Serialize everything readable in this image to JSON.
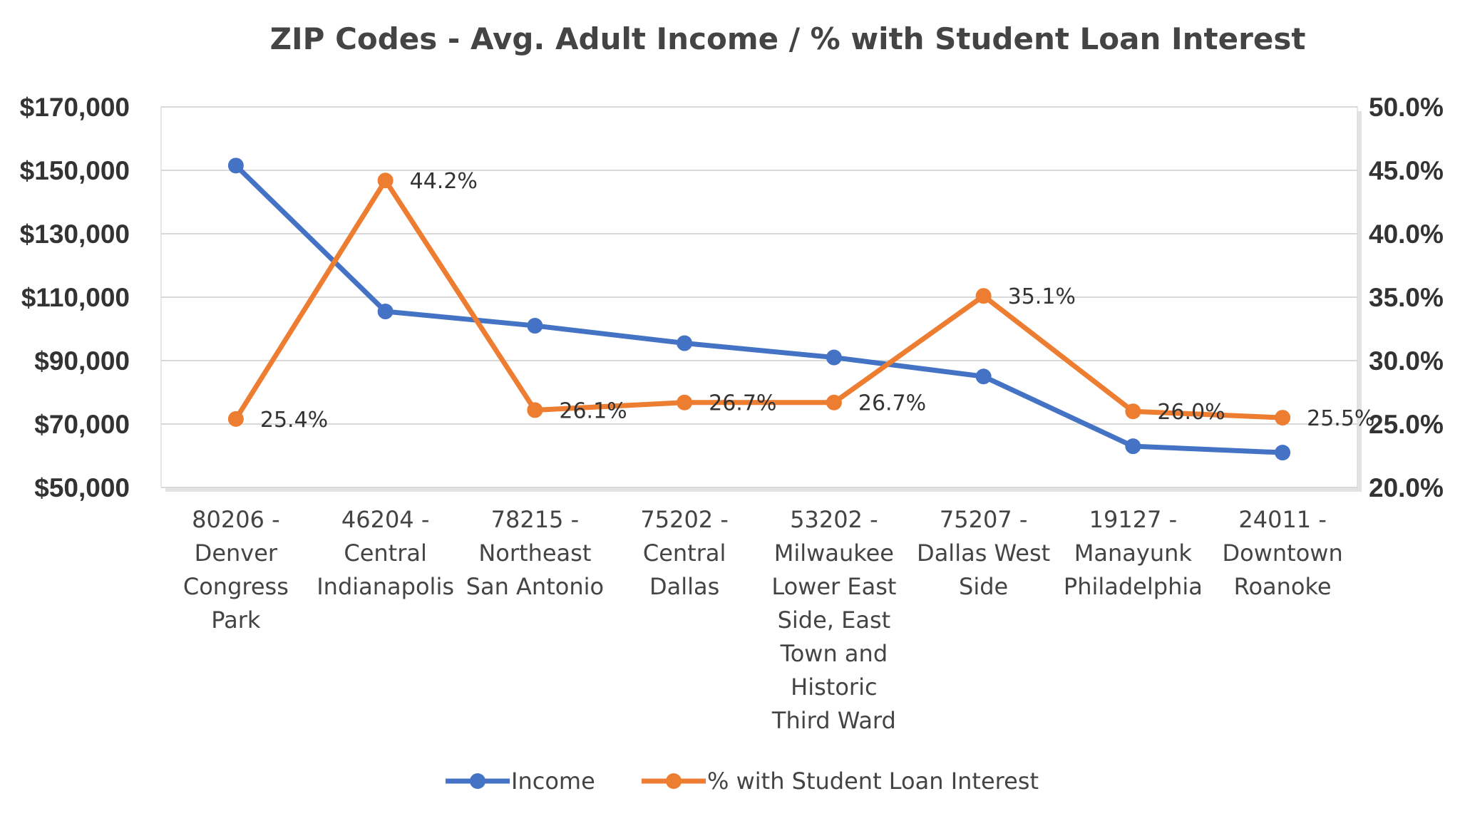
{
  "chart_data": {
    "type": "line",
    "title": "ZIP Codes - Avg. Adult Income / % with Student Loan Interest",
    "categories": [
      "80206 - Denver Congress Park",
      "46204 - Central Indianapolis",
      "78215 - Northeast San Antonio",
      "75202 - Central Dallas",
      "53202 - Milwaukee Lower East Side, East Town and Historic Third Ward",
      "75207 - Dallas West Side",
      "19127 - Manayunk Philadelphia",
      "24011 - Downtown Roanoke"
    ],
    "category_lines": [
      [
        "80206 -",
        "Denver",
        "Congress",
        "Park"
      ],
      [
        "46204 -",
        "Central",
        "Indianapolis"
      ],
      [
        "78215 -",
        "Northeast",
        "San Antonio"
      ],
      [
        "75202 -",
        "Central",
        "Dallas"
      ],
      [
        "53202 -",
        "Milwaukee",
        "Lower East",
        "Side, East",
        "Town and",
        "Historic",
        "Third Ward"
      ],
      [
        "75207 -",
        "Dallas West",
        "Side"
      ],
      [
        "19127 -",
        "Manayunk",
        "Philadelphia"
      ],
      [
        "24011 -",
        "Downtown",
        "Roanoke"
      ]
    ],
    "series": [
      {
        "name": "Income",
        "axis": "left",
        "color": "#4472C4",
        "values": [
          151500,
          105500,
          101000,
          95500,
          91000,
          85000,
          63000,
          61000
        ]
      },
      {
        "name": "% with Student Loan Interest",
        "axis": "right",
        "color": "#ED7D31",
        "values": [
          25.4,
          44.2,
          26.1,
          26.7,
          26.7,
          35.1,
          26.0,
          25.5
        ],
        "labels": [
          "25.4%",
          "44.2%",
          "26.1%",
          "26.7%",
          "26.7%",
          "35.1%",
          "26.0%",
          "25.5%"
        ]
      }
    ],
    "y_left": {
      "min": 50000,
      "max": 170000,
      "ticks": [
        "$50,000",
        "$70,000",
        "$90,000",
        "$110,000",
        "$130,000",
        "$150,000",
        "$170,000"
      ],
      "tick_values": [
        50000,
        70000,
        90000,
        110000,
        130000,
        150000,
        170000
      ]
    },
    "y_right": {
      "min": 20,
      "max": 50,
      "ticks": [
        "20.0%",
        "25.0%",
        "30.0%",
        "35.0%",
        "40.0%",
        "45.0%",
        "50.0%"
      ],
      "tick_values": [
        20,
        25,
        30,
        35,
        40,
        45,
        50
      ]
    },
    "grid": true,
    "legend_position": "bottom",
    "gridline_color": "#D9D9D9"
  }
}
